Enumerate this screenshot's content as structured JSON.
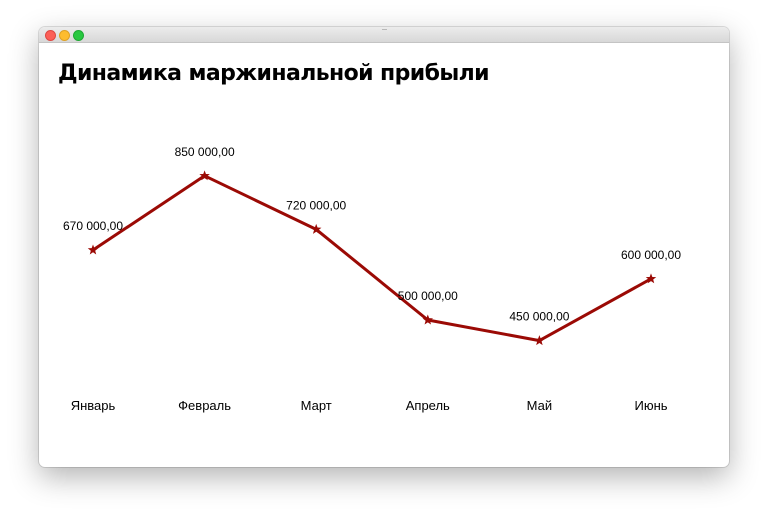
{
  "chart_data": {
    "type": "line",
    "title": "Динамика маржинальной прибыли",
    "categories": [
      "Январь",
      "Февраль",
      "Март",
      "Апрель",
      "Май",
      "Июнь"
    ],
    "series": [
      {
        "values": [
          670000,
          850000,
          720000,
          500000,
          450000,
          600000
        ],
        "labels": [
          "670 000,00",
          "850 000,00",
          "720 000,00",
          "500 000,00",
          "450 000,00",
          "600 000,00"
        ]
      }
    ],
    "marker": "star",
    "color": "#9b0a05",
    "grid": false,
    "legend": "none"
  }
}
